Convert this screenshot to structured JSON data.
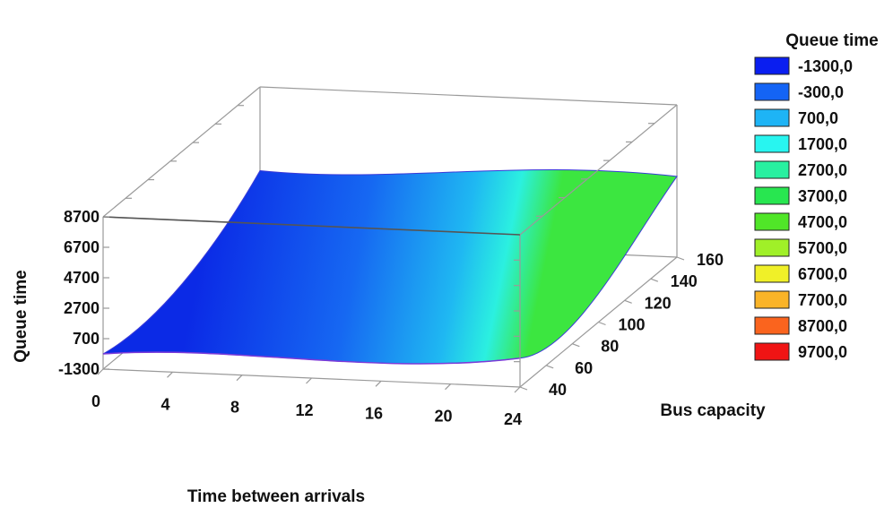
{
  "chart_data": {
    "type": "surface",
    "xlabel": "Time between arrivals",
    "ylabel": "Bus capacity",
    "zlabel": "Queue time",
    "x_ticks": [
      "0",
      "4",
      "8",
      "12",
      "16",
      "20",
      "24"
    ],
    "y_ticks": [
      "40",
      "60",
      "80",
      "100",
      "120",
      "140",
      "160"
    ],
    "z_ticks": [
      "-1300",
      "700",
      "2700",
      "4700",
      "6700",
      "8700"
    ],
    "xlim": [
      0,
      24
    ],
    "ylim": [
      40,
      160
    ],
    "zlim": [
      -1300,
      8700
    ],
    "surface_corners": [
      {
        "x": 0,
        "y": 40,
        "z": -300
      },
      {
        "x": 0,
        "y": 160,
        "z": 3200
      },
      {
        "x": 24,
        "y": 40,
        "z": 600
      },
      {
        "x": 24,
        "y": 160,
        "z": 4000
      }
    ],
    "legend": {
      "title": "Queue time",
      "position": "right",
      "items": [
        {
          "label": "-1300,0",
          "color": "#0a1ef0"
        },
        {
          "label": "-300,0",
          "color": "#1464f5"
        },
        {
          "label": "700,0",
          "color": "#1eb4f5"
        },
        {
          "label": "1700,0",
          "color": "#28f5f0"
        },
        {
          "label": "2700,0",
          "color": "#28f0a0"
        },
        {
          "label": "3700,0",
          "color": "#28e650"
        },
        {
          "label": "4700,0",
          "color": "#50e628"
        },
        {
          "label": "5700,0",
          "color": "#a0f028"
        },
        {
          "label": "6700,0",
          "color": "#f0f028"
        },
        {
          "label": "7700,0",
          "color": "#fab428"
        },
        {
          "label": "8700,0",
          "color": "#fa641e"
        },
        {
          "label": "9700,0",
          "color": "#f01414"
        }
      ]
    }
  }
}
